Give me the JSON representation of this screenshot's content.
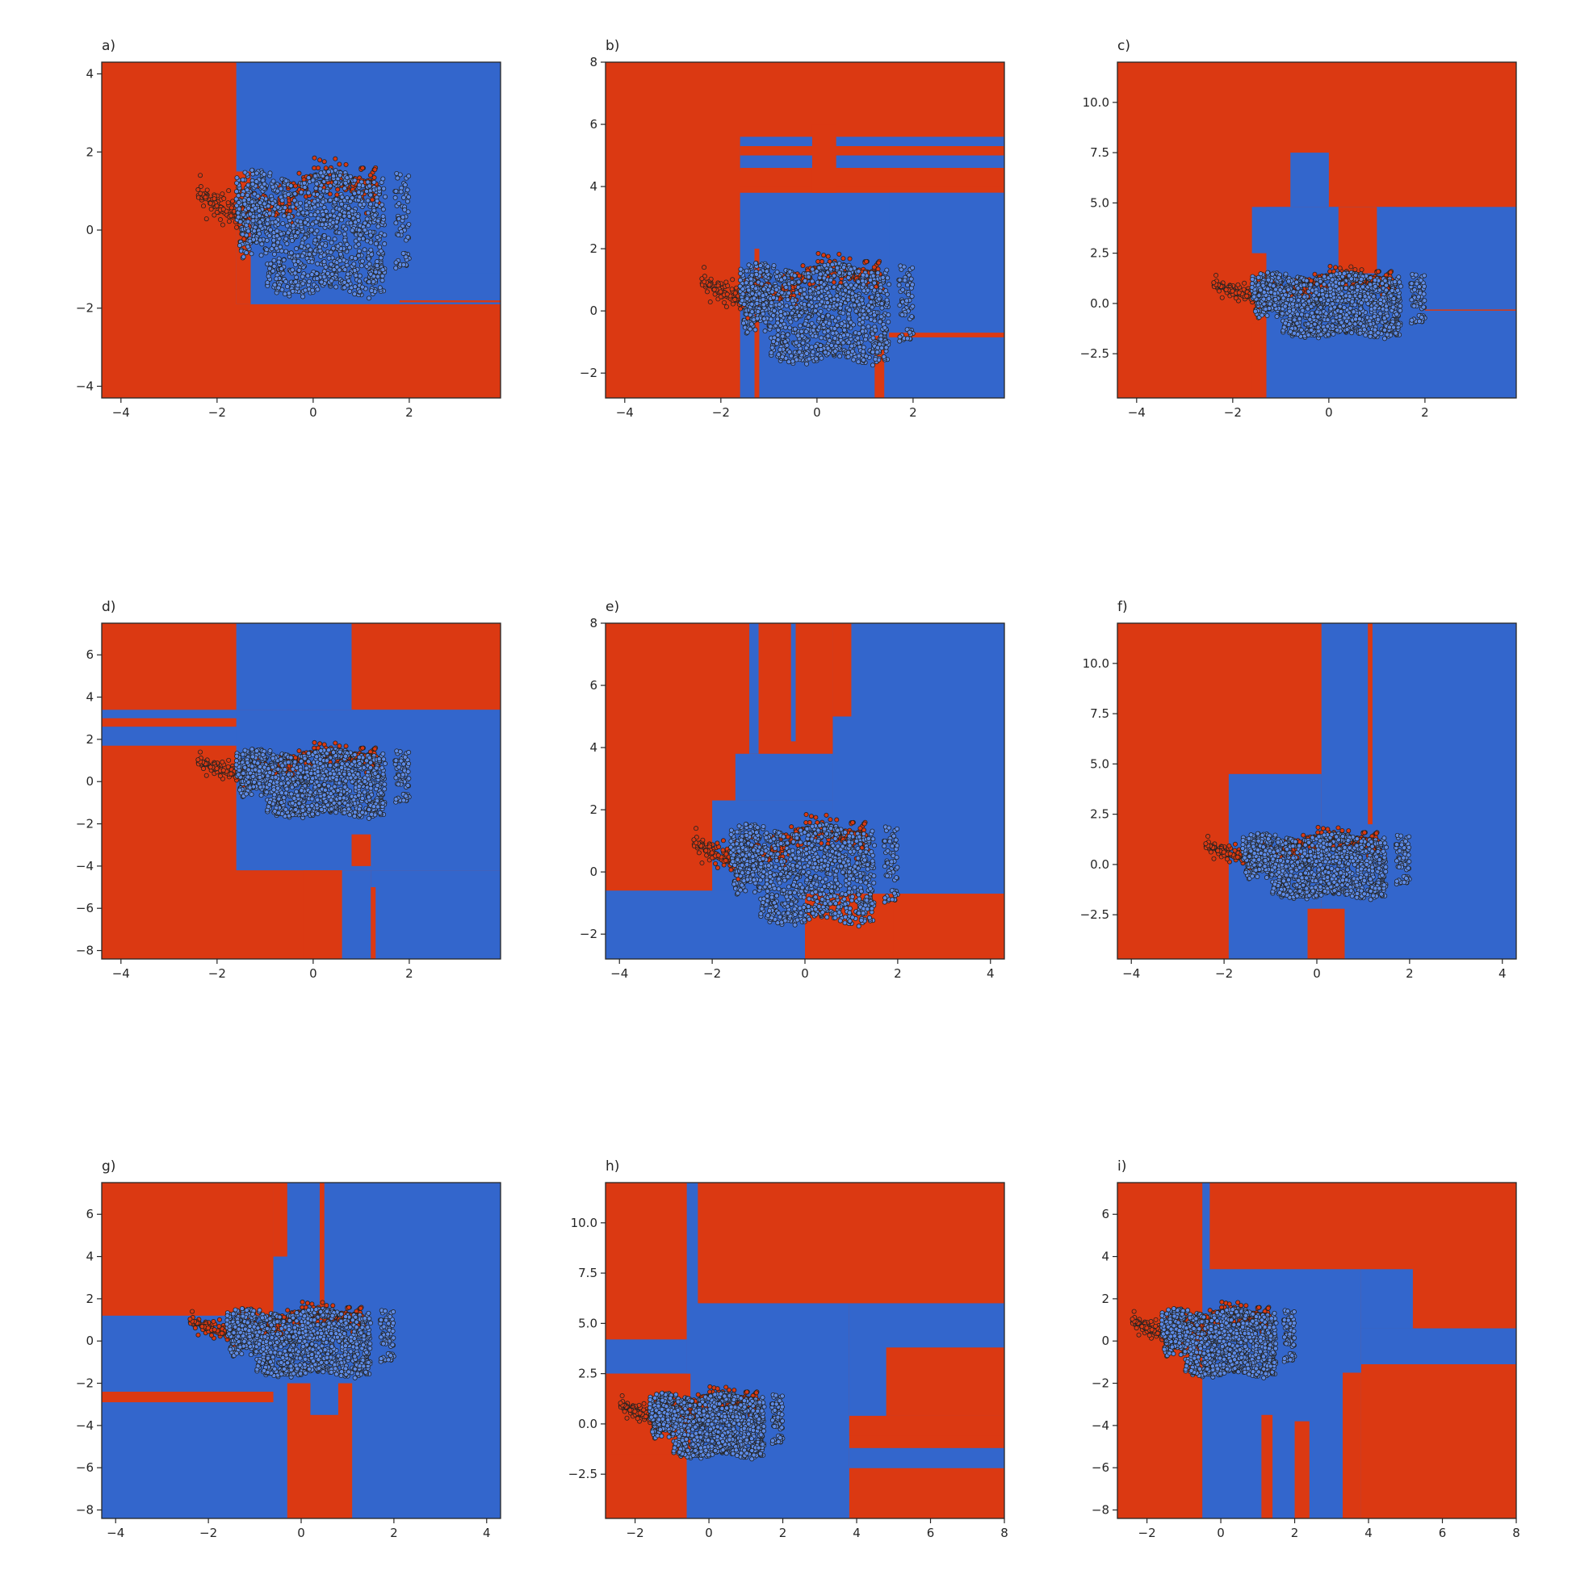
{
  "figure": {
    "colors": {
      "red_class": "#db3912",
      "blue_class": "#3366cc",
      "point_edge": "#222222",
      "axis": "#262626"
    },
    "panels": [
      {
        "label": "a)",
        "xlim": [
          -4.4,
          3.9
        ],
        "ylim": [
          -4.3,
          4.3
        ],
        "xticks": [
          -4,
          -2,
          0,
          2
        ],
        "xtick_labels": [
          "−4",
          "−2",
          "0",
          "2"
        ],
        "yticks": [
          -4,
          -2,
          0,
          2,
          4
        ],
        "ytick_labels": [
          "−4",
          "−2",
          "0",
          "2",
          "4"
        ],
        "background": "red",
        "blue_regions": [
          [
            -1.6,
            3.9,
            -1.9,
            4.3
          ],
          [
            1.8,
            3.9,
            -1.1,
            -1.1
          ]
        ],
        "red_regions": [
          [
            -1.6,
            -1.3,
            -1.9,
            1.5
          ],
          [
            1.8,
            3.9,
            -1.8,
            -1.85
          ]
        ]
      },
      {
        "label": "b)",
        "xlim": [
          -4.4,
          3.9
        ],
        "ylim": [
          -2.8,
          8.0
        ],
        "xticks": [
          -4,
          -2,
          0,
          2
        ],
        "xtick_labels": [
          "−4",
          "−2",
          "0",
          "2"
        ],
        "yticks": [
          -2,
          0,
          2,
          4,
          6,
          8
        ],
        "ytick_labels": [
          "−2",
          "0",
          "2",
          "4",
          "6",
          "8"
        ],
        "background": "red",
        "blue_regions": [
          [
            -1.6,
            3.9,
            -2.8,
            3.8
          ],
          [
            -1.6,
            3.9,
            4.5,
            5.6
          ],
          [
            1.5,
            3.9,
            -0.8,
            3.8
          ]
        ],
        "red_regions": [
          [
            -1.6,
            3.9,
            4.0,
            4.6
          ],
          [
            -1.6,
            3.9,
            5.0,
            5.3
          ],
          [
            -0.1,
            0.4,
            3.8,
            6.0
          ],
          [
            -1.3,
            -1.2,
            -2.8,
            2.0
          ],
          [
            1.2,
            1.4,
            -2.8,
            -0.8
          ],
          [
            1.5,
            3.9,
            -0.85,
            -0.7
          ]
        ]
      },
      {
        "label": "c)",
        "xlim": [
          -4.4,
          3.9
        ],
        "ylim": [
          -4.7,
          12.0
        ],
        "xticks": [
          -4,
          -2,
          0,
          2
        ],
        "xtick_labels": [
          "−4",
          "−2",
          "0",
          "2"
        ],
        "yticks": [
          -2.5,
          0.0,
          2.5,
          5.0,
          7.5,
          10.0
        ],
        "ytick_labels": [
          "−2.5",
          "0.0",
          "2.5",
          "5.0",
          "7.5",
          "10.0"
        ],
        "background": "red",
        "blue_regions": [
          [
            -1.3,
            3.9,
            -4.7,
            4.8
          ],
          [
            -1.6,
            1.4,
            2.5,
            4.8
          ],
          [
            -0.8,
            0.0,
            4.8,
            7.5
          ]
        ],
        "red_regions": [
          [
            -1.6,
            -1.3,
            -4.7,
            -1.0
          ],
          [
            0.2,
            1.0,
            1.5,
            4.8
          ],
          [
            2.0,
            3.9,
            -0.35,
            -0.3
          ]
        ]
      },
      {
        "label": "d)",
        "xlim": [
          -4.4,
          3.9
        ],
        "ylim": [
          -8.4,
          7.5
        ],
        "xticks": [
          -4,
          -2,
          0,
          2
        ],
        "xtick_labels": [
          "−4",
          "−2",
          "0",
          "2"
        ],
        "yticks": [
          -8,
          -6,
          -4,
          -2,
          0,
          2,
          4,
          6
        ],
        "ytick_labels": [
          "−8",
          "−6",
          "−4",
          "−2",
          "0",
          "2",
          "4",
          "6"
        ],
        "background": "red",
        "blue_regions": [
          [
            -1.6,
            0.8,
            3.4,
            7.5
          ],
          [
            -4.4,
            3.9,
            1.7,
            3.4
          ],
          [
            -1.6,
            3.9,
            -4.2,
            3.4
          ],
          [
            1.2,
            3.9,
            -8.4,
            -4.2
          ],
          [
            0.6,
            1.2,
            -8.4,
            -4.2
          ]
        ],
        "red_regions": [
          [
            -4.4,
            -1.6,
            2.6,
            3.0
          ],
          [
            -0.2,
            0.6,
            -8.4,
            -4.2
          ],
          [
            0.8,
            1.2,
            -4.0,
            -2.5
          ],
          [
            1.2,
            1.3,
            -8.4,
            -5.0
          ]
        ]
      },
      {
        "label": "e)",
        "xlim": [
          -4.3,
          4.3
        ],
        "ylim": [
          -2.8,
          8.0
        ],
        "xticks": [
          -4,
          -2,
          0,
          2,
          4
        ],
        "xtick_labels": [
          "−4",
          "−2",
          "0",
          "2",
          "4"
        ],
        "yticks": [
          -2,
          0,
          2,
          4,
          6,
          8
        ],
        "ytick_labels": [
          "−2",
          "0",
          "2",
          "4",
          "6",
          "8"
        ],
        "background": "red",
        "blue_regions": [
          [
            0.6,
            4.3,
            -0.7,
            8.0
          ],
          [
            -2.0,
            0.6,
            -0.7,
            2.3
          ],
          [
            -4.3,
            0.0,
            -2.8,
            -0.6
          ],
          [
            -1.5,
            0.6,
            2.3,
            3.8
          ],
          [
            -1.2,
            -1.0,
            3.8,
            8.0
          ],
          [
            -0.3,
            -0.2,
            4.2,
            8.0
          ]
        ],
        "red_regions": [
          [
            1.9,
            4.3,
            -2.8,
            -0.7
          ],
          [
            0.6,
            1.0,
            5.0,
            8.0
          ]
        ]
      },
      {
        "label": "f)",
        "xlim": [
          -4.3,
          4.3
        ],
        "ylim": [
          -4.7,
          12.0
        ],
        "xticks": [
          -4,
          -2,
          0,
          2,
          4
        ],
        "xtick_labels": [
          "−4",
          "−2",
          "0",
          "2",
          "4"
        ],
        "yticks": [
          -2.5,
          0.0,
          2.5,
          5.0,
          7.5,
          10.0
        ],
        "ytick_labels": [
          "−2.5",
          "0.0",
          "2.5",
          "5.0",
          "7.5",
          "10.0"
        ],
        "background": "red",
        "blue_regions": [
          [
            0.1,
            4.3,
            -4.7,
            12.0
          ],
          [
            -1.9,
            0.1,
            -4.7,
            4.5
          ]
        ],
        "red_regions": [
          [
            -0.2,
            0.6,
            -4.7,
            -2.2
          ],
          [
            1.1,
            1.2,
            2.0,
            12.0
          ]
        ]
      },
      {
        "label": "g)",
        "xlim": [
          -4.3,
          4.3
        ],
        "ylim": [
          -8.4,
          7.5
        ],
        "xticks": [
          -4,
          -2,
          0,
          2,
          4
        ],
        "xtick_labels": [
          "−4",
          "−2",
          "0",
          "2",
          "4"
        ],
        "yticks": [
          -8,
          -6,
          -4,
          -2,
          0,
          2,
          4,
          6
        ],
        "ytick_labels": [
          "−8",
          "−6",
          "−4",
          "−2",
          "0",
          "2",
          "4",
          "6"
        ],
        "background": "blue",
        "red_regions": [
          [
            -4.3,
            -0.6,
            1.2,
            7.5
          ],
          [
            -4.3,
            -0.6,
            -2.9,
            -2.4
          ],
          [
            -0.3,
            1.1,
            -8.4,
            -2.0
          ],
          [
            -0.6,
            -0.3,
            4.0,
            7.5
          ],
          [
            0.4,
            0.5,
            1.0,
            7.5
          ]
        ],
        "blue_regions": [
          [
            0.2,
            0.8,
            -3.5,
            -1.0
          ]
        ]
      },
      {
        "label": "h)",
        "xlim": [
          -2.8,
          8.0
        ],
        "ylim": [
          -4.7,
          12.0
        ],
        "xticks": [
          -2,
          0,
          2,
          4,
          6,
          8
        ],
        "xtick_labels": [
          "−2",
          "0",
          "2",
          "4",
          "6",
          "8"
        ],
        "yticks": [
          -2.5,
          0.0,
          2.5,
          5.0,
          7.5,
          10.0
        ],
        "ytick_labels": [
          "−2.5",
          "0.0",
          "2.5",
          "5.0",
          "7.5",
          "10.0"
        ],
        "background": "red",
        "blue_regions": [
          [
            -0.6,
            -0.3,
            -4.7,
            12.0
          ],
          [
            -2.8,
            -0.6,
            2.5,
            4.2
          ],
          [
            -0.6,
            3.8,
            -4.7,
            6.0
          ],
          [
            3.8,
            8.0,
            0.4,
            6.0
          ],
          [
            3.8,
            8.0,
            -2.2,
            -1.2
          ]
        ],
        "red_regions": [
          [
            4.8,
            8.0,
            0.4,
            3.8
          ],
          [
            3.8,
            8.0,
            -0.6,
            0.4
          ],
          [
            -2.8,
            -0.5,
            -1.5,
            2.5
          ]
        ]
      },
      {
        "label": "i)",
        "xlim": [
          -2.8,
          8.0
        ],
        "ylim": [
          -8.4,
          7.5
        ],
        "xticks": [
          -2,
          0,
          2,
          4,
          6,
          8
        ],
        "xtick_labels": [
          "−2",
          "0",
          "2",
          "4",
          "6",
          "8"
        ],
        "yticks": [
          -8,
          -6,
          -4,
          -2,
          0,
          2,
          4,
          6
        ],
        "ytick_labels": [
          "−8",
          "−6",
          "−4",
          "−2",
          "0",
          "2",
          "4",
          "6"
        ],
        "background": "red",
        "blue_regions": [
          [
            -0.5,
            3.8,
            -8.4,
            3.4
          ],
          [
            3.8,
            8.0,
            -1.1,
            0.6
          ],
          [
            3.8,
            5.2,
            0.6,
            3.4
          ],
          [
            -0.5,
            -0.3,
            3.4,
            7.5
          ]
        ],
        "red_regions": [
          [
            1.1,
            1.4,
            -8.4,
            -3.5
          ],
          [
            2.0,
            2.4,
            -8.4,
            -3.8
          ],
          [
            3.3,
            3.8,
            -8.4,
            -1.5
          ]
        ]
      }
    ]
  }
}
